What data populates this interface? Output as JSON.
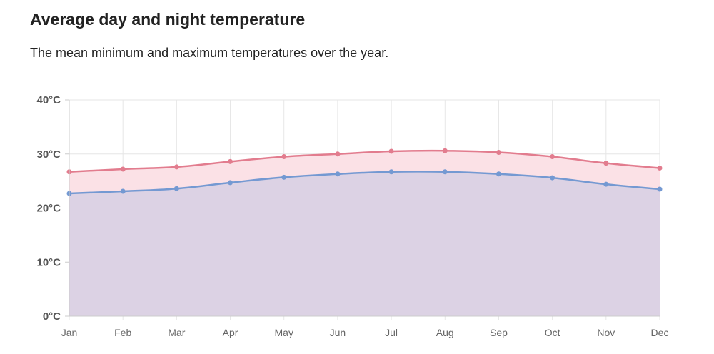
{
  "page": {
    "title": "Average day and night temperature",
    "subtitle": "The mean minimum and maximum temperatures over the year."
  },
  "colors": {
    "max_line": "#e27c8e",
    "max_fill": "#fbe1e6",
    "min_line": "#7499d2",
    "min_fill": "#dcd2e4",
    "grid": "#e6e6e6",
    "axis": "#cccccc"
  },
  "chart_data": {
    "type": "area",
    "title": "Average day and night temperature",
    "subtitle": "The mean minimum and maximum temperatures over the year.",
    "categories": [
      "Jan",
      "Feb",
      "Mar",
      "Apr",
      "May",
      "Jun",
      "Jul",
      "Aug",
      "Sep",
      "Oct",
      "Nov",
      "Dec"
    ],
    "series": [
      {
        "key": "max",
        "values": [
          26.7,
          27.2,
          27.6,
          28.6,
          29.5,
          30.0,
          30.5,
          30.6,
          30.3,
          29.5,
          28.3,
          27.4
        ]
      },
      {
        "key": "min",
        "values": [
          22.7,
          23.1,
          23.6,
          24.7,
          25.7,
          26.3,
          26.7,
          26.7,
          26.3,
          25.6,
          24.4,
          23.5
        ]
      }
    ],
    "ylim": [
      0,
      40
    ],
    "yticks": [
      "0°C",
      "10°C",
      "20°C",
      "30°C",
      "40°C"
    ],
    "ytick_values": [
      0,
      10,
      20,
      30,
      40
    ],
    "xlabel": "",
    "ylabel": "",
    "grid": true,
    "legend": "none"
  }
}
